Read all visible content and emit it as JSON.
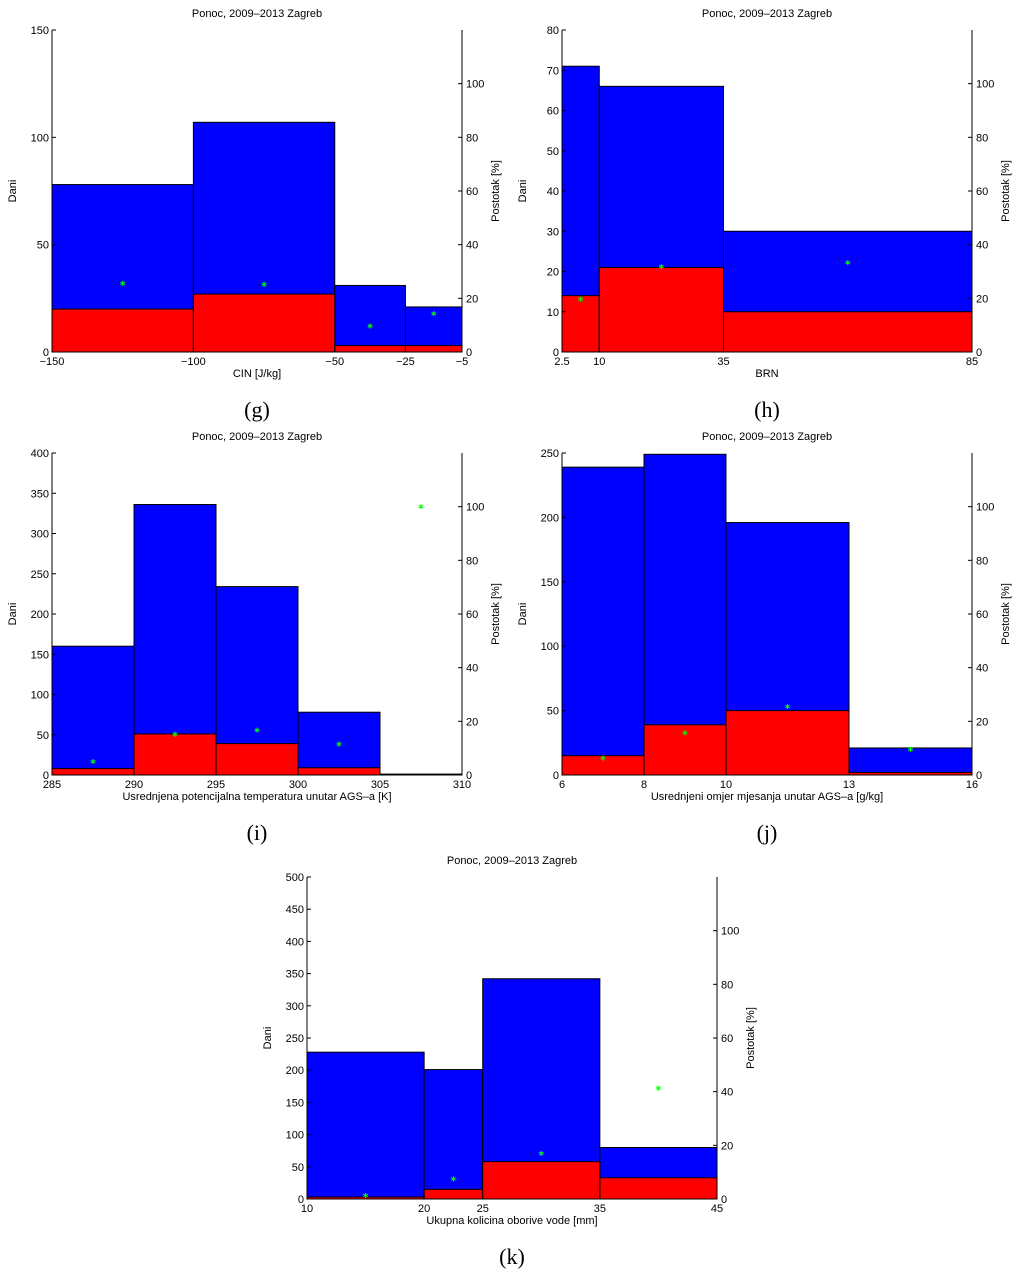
{
  "chart_data": [
    {
      "type": "histogram",
      "title": "Ponoc, 2009–2013 Zagreb",
      "xlabel": "CIN [J/kg]",
      "ylabel": "Dani",
      "y2label": "Postotak [%]",
      "caption": "(g)",
      "bins": [
        -150,
        -100,
        -50,
        -25,
        -5
      ],
      "xlim": [
        -150,
        -5
      ],
      "xticks": [
        {
          "value": -150,
          "label": "−150"
        },
        {
          "value": -100,
          "label": "−100"
        },
        {
          "value": -50,
          "label": "−50"
        },
        {
          "value": -25,
          "label": "−25"
        },
        {
          "value": -5,
          "label": "−5"
        }
      ],
      "ylim": [
        0,
        150
      ],
      "yticks": [
        0,
        50,
        100,
        150
      ],
      "y2lim": [
        0,
        120
      ],
      "y2ticks": [
        0,
        20,
        40,
        60,
        80,
        100
      ],
      "series": [
        {
          "color": "#0000ff",
          "values": [
            78,
            107,
            31,
            21
          ]
        },
        {
          "color": "#ff0000",
          "values": [
            20,
            27,
            3,
            3
          ]
        },
        {
          "color": "#00ff00",
          "axis": "y2",
          "values": [
            25.6,
            25.2,
            9.7,
            14.3
          ]
        }
      ]
    },
    {
      "type": "histogram",
      "title": "Ponoc, 2009–2013 Zagreb",
      "xlabel": "BRN",
      "ylabel": "Dani",
      "y2label": "Postotak [%]",
      "caption": "(h)",
      "bins": [
        2.5,
        10,
        35,
        85
      ],
      "xlim": [
        2.5,
        85
      ],
      "xticks": [
        2.5,
        10,
        35,
        85
      ],
      "ylim": [
        0,
        80
      ],
      "yticks": [
        0,
        10,
        20,
        30,
        40,
        50,
        60,
        70,
        80
      ],
      "y2lim": [
        0,
        120
      ],
      "y2ticks": [
        0,
        20,
        40,
        60,
        80,
        100
      ],
      "series": [
        {
          "color": "#0000ff",
          "values": [
            71,
            66,
            30
          ]
        },
        {
          "color": "#ff0000",
          "values": [
            14,
            21,
            10
          ]
        },
        {
          "color": "#00ff00",
          "axis": "y2",
          "values": [
            19.7,
            31.8,
            33.3
          ]
        }
      ]
    },
    {
      "type": "histogram",
      "title": "Ponoc, 2009–2013 Zagreb",
      "xlabel": "Usrednjena potencijalna temperatura unutar AGS–a [K]",
      "ylabel": "Dani",
      "y2label": "Postotak [%]",
      "caption": "(i)",
      "bins": [
        285,
        290,
        295,
        300,
        305,
        310
      ],
      "xlim": [
        285,
        310
      ],
      "xticks": [
        285,
        290,
        295,
        300,
        305,
        310
      ],
      "ylim": [
        0,
        400
      ],
      "yticks": [
        0,
        50,
        100,
        150,
        200,
        250,
        300,
        350,
        400
      ],
      "y2lim": [
        0,
        120
      ],
      "y2ticks": [
        0,
        20,
        40,
        60,
        80,
        100
      ],
      "series": [
        {
          "color": "#0000ff",
          "values": [
            160,
            336,
            234,
            78,
            1
          ]
        },
        {
          "color": "#ff0000",
          "values": [
            8,
            51,
            39,
            9,
            1
          ]
        },
        {
          "color": "#00ff00",
          "axis": "y2",
          "values": [
            5,
            15.2,
            16.7,
            11.5,
            100
          ]
        }
      ]
    },
    {
      "type": "histogram",
      "title": "Ponoc, 2009–2013 Zagreb",
      "xlabel": "Usrednjeni omjer mjesanja unutar AGS–a [g/kg]",
      "ylabel": "Dani",
      "y2label": "Postotak [%]",
      "caption": "(j)",
      "bins": [
        6,
        8,
        10,
        13,
        16
      ],
      "xlim": [
        6,
        16
      ],
      "xticks": [
        6,
        8,
        10,
        13,
        16
      ],
      "ylim": [
        0,
        250
      ],
      "yticks": [
        0,
        50,
        100,
        150,
        200,
        250
      ],
      "y2lim": [
        0,
        120
      ],
      "y2ticks": [
        0,
        20,
        40,
        60,
        80,
        100
      ],
      "series": [
        {
          "color": "#0000ff",
          "values": [
            239,
            249,
            196,
            21
          ]
        },
        {
          "color": "#ff0000",
          "values": [
            15,
            39,
            50,
            2
          ]
        },
        {
          "color": "#00ff00",
          "axis": "y2",
          "values": [
            6.3,
            15.7,
            25.5,
            9.5
          ]
        }
      ]
    },
    {
      "type": "histogram",
      "title": "Ponoc, 2009–2013 Zagreb",
      "xlabel": "Ukupna kolicina oborive vode [mm]",
      "ylabel": "Dani",
      "y2label": "Postotak [%]",
      "caption": "(k)",
      "bins": [
        10,
        20,
        25,
        35,
        45
      ],
      "xlim": [
        10,
        45
      ],
      "xticks": [
        10,
        20,
        25,
        35,
        45
      ],
      "ylim": [
        0,
        500
      ],
      "yticks": [
        0,
        50,
        100,
        150,
        200,
        250,
        300,
        350,
        400,
        450,
        500
      ],
      "y2lim": [
        0,
        120
      ],
      "y2ticks": [
        0,
        20,
        40,
        60,
        80,
        100
      ],
      "series": [
        {
          "color": "#0000ff",
          "values": [
            228,
            201,
            342,
            80
          ]
        },
        {
          "color": "#ff0000",
          "values": [
            3,
            15,
            58,
            33
          ]
        },
        {
          "color": "#00ff00",
          "axis": "y2",
          "values": [
            1.3,
            7.5,
            17,
            41.3
          ]
        }
      ]
    }
  ]
}
